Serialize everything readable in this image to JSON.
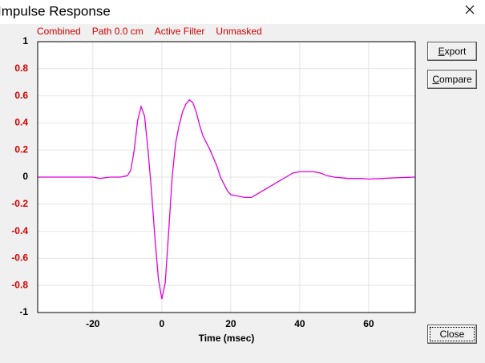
{
  "window": {
    "title": "Impulse Response",
    "buttons": [
      "Export",
      "Compare",
      "Close"
    ]
  },
  "chart_data": {
    "type": "line",
    "annotations": [
      "Combined",
      "Path 0.0 cm",
      "Active Filter",
      "Unmasked"
    ],
    "x_label": "Time (msec)",
    "x": [
      -36,
      -20,
      -18,
      -15,
      -12,
      -10,
      -9,
      -8,
      -7,
      -6,
      -5,
      -4,
      -3,
      -2,
      -1,
      0,
      1,
      2,
      3,
      4,
      5,
      6,
      7,
      8,
      9,
      10,
      11,
      12,
      14,
      16,
      17,
      18,
      19,
      20,
      22,
      24,
      26,
      28,
      30,
      32,
      34,
      36,
      38,
      40,
      42,
      44,
      46,
      48,
      50,
      54,
      58,
      60,
      64,
      68,
      73.5
    ],
    "values": [
      0,
      0,
      -0.01,
      0,
      0,
      0.01,
      0.05,
      0.2,
      0.42,
      0.52,
      0.45,
      0.2,
      -0.1,
      -0.45,
      -0.75,
      -0.9,
      -0.78,
      -0.4,
      0,
      0.25,
      0.38,
      0.48,
      0.54,
      0.57,
      0.55,
      0.48,
      0.38,
      0.3,
      0.2,
      0.08,
      0,
      -0.05,
      -0.1,
      -0.13,
      -0.14,
      -0.15,
      -0.15,
      -0.12,
      -0.09,
      -0.06,
      -0.03,
      0,
      0.03,
      0.04,
      0.04,
      0.04,
      0.03,
      0.01,
      0,
      -0.01,
      -0.01,
      -0.015,
      -0.01,
      -0.005,
      0
    ],
    "color": "#e000e0",
    "xlim": [
      -36,
      73.5
    ],
    "ylim": [
      -1,
      1
    ],
    "xticks": [
      -20,
      0,
      20,
      40,
      60
    ],
    "yticks": [
      -1,
      -0.8,
      -0.6,
      -0.4,
      -0.2,
      0,
      0.2,
      0.4,
      0.6,
      0.8,
      1
    ],
    "grid": true
  }
}
